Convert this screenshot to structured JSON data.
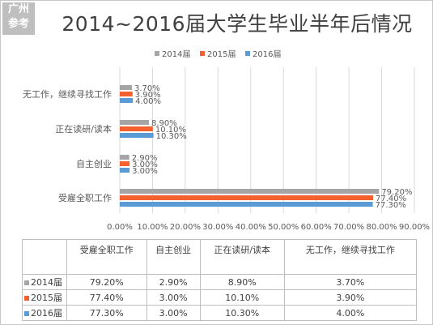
{
  "badge": {
    "line1": "广州",
    "line2": "参考"
  },
  "colors": {
    "2014": "#a5a5a5",
    "2015": "#f4602e",
    "2016": "#5b9bd5",
    "grid": "#d9d9d9",
    "text": "#595959"
  },
  "chart_data": {
    "type": "bar",
    "orientation": "horizontal",
    "title": "2014~2016届大学生毕业半年后情况",
    "categories": [
      "无工作，继续寻找工作",
      "正在读研/读本",
      "自主创业",
      "受雇全职工作"
    ],
    "series": [
      {
        "name": "2014届",
        "values": [
          3.7,
          8.9,
          2.9,
          79.2
        ],
        "labels": [
          "3.70%",
          "8.90%",
          "2.90%",
          "79.20%"
        ]
      },
      {
        "name": "2015届",
        "values": [
          3.9,
          10.1,
          3.0,
          77.4
        ],
        "labels": [
          "3.90%",
          "10.10%",
          "3.00%",
          "77.40%"
        ]
      },
      {
        "name": "2016届",
        "values": [
          4.0,
          10.3,
          3.0,
          77.3
        ],
        "labels": [
          "4.00%",
          "10.30%",
          "3.00%",
          "77.30%"
        ]
      }
    ],
    "xlim": [
      0,
      90
    ],
    "xticks": [
      "0.00%",
      "10.00%",
      "20.00%",
      "30.00%",
      "40.00%",
      "50.00%",
      "60.00%",
      "70.00%",
      "80.00%",
      "90.00%"
    ],
    "legend": "top",
    "grid": true
  },
  "table": {
    "headers": [
      "受雇全职工作",
      "自主创业",
      "正在读研/读本",
      "无工作，继续寻找工作"
    ],
    "rows": [
      {
        "label": "2014届",
        "cells": [
          "79.20%",
          "2.90%",
          "8.90%",
          "3.70%"
        ]
      },
      {
        "label": "2015届",
        "cells": [
          "77.40%",
          "3.00%",
          "10.10%",
          "3.90%"
        ]
      },
      {
        "label": "2016届",
        "cells": [
          "77.30%",
          "3.00%",
          "10.30%",
          "4.00%"
        ]
      }
    ]
  }
}
